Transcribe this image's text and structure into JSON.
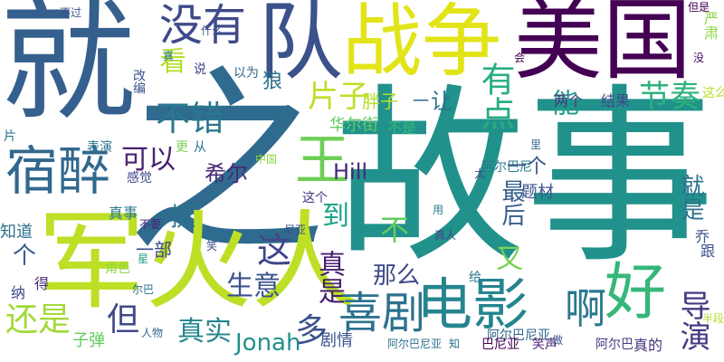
{
  "words": [
    {
      "text": "就",
      "color": "#355f8d",
      "vertical": false
    },
    {
      "text": "之",
      "color": "#2f6b8e",
      "vertical": false
    },
    {
      "text": "故事",
      "color": "#21918c",
      "vertical": false
    },
    {
      "text": "美国",
      "color": "#440154",
      "vertical": false
    },
    {
      "text": "战争",
      "color": "#e2e418",
      "vertical": false
    },
    {
      "text": "队",
      "color": "#3b528b",
      "vertical": true
    },
    {
      "text": "军火人",
      "color": "#bddf26",
      "vertical": false
    },
    {
      "text": "好",
      "color": "#35b779",
      "vertical": false
    },
    {
      "text": "电影",
      "color": "#25858e",
      "vertical": false
    },
    {
      "text": "啊",
      "color": "#2a788e",
      "vertical": false
    },
    {
      "text": "宿醉",
      "color": "#31688e",
      "vertical": false
    },
    {
      "text": "没有",
      "color": "#3e4a89",
      "vertical": false
    },
    {
      "text": "喜剧",
      "color": "#2c728e",
      "vertical": false
    },
    {
      "text": "王",
      "color": "#6ece58",
      "vertical": false
    },
    {
      "text": "片子",
      "color": "#bddf26",
      "vertical": false
    },
    {
      "text": "有点",
      "color": "#28ae80",
      "vertical": true
    },
    {
      "text": "节奏",
      "color": "#2db27d",
      "vertical": false
    },
    {
      "text": "不错",
      "color": "#2a788e",
      "vertical": false
    },
    {
      "text": "看",
      "color": "#b5de2b",
      "vertical": false
    },
    {
      "text": "还是",
      "color": "#a2da37",
      "vertical": false
    },
    {
      "text": "导演",
      "color": "#443983",
      "vertical": true
    },
    {
      "text": "真实",
      "color": "#25858e",
      "vertical": false
    },
    {
      "text": "这",
      "color": "#404688",
      "vertical": false
    },
    {
      "text": "但",
      "color": "#3e4a89",
      "vertical": false
    },
    {
      "text": "可以",
      "color": "#482071",
      "vertical": false
    },
    {
      "text": "Jonah",
      "color": "#21918c",
      "vertical": false
    },
    {
      "text": "到",
      "color": "#1fa188",
      "vertical": true
    },
    {
      "text": "挺",
      "color": "#2c728e",
      "vertical": false
    },
    {
      "text": "生意",
      "color": "#3b528b",
      "vertical": false
    },
    {
      "text": "多",
      "color": "#3b528b",
      "vertical": false
    },
    {
      "text": "希尔",
      "color": "#482878",
      "vertical": false
    },
    {
      "text": "Hill",
      "color": "#472a7a",
      "vertical": false
    },
    {
      "text": "又",
      "color": "#7ad151",
      "vertical": false
    },
    {
      "text": "不",
      "color": "#63cb5f",
      "vertical": false
    },
    {
      "text": "能",
      "color": "#1f9e89",
      "vertical": true
    },
    {
      "text": "让",
      "color": "#2e6e8e",
      "vertical": false
    },
    {
      "text": "真是",
      "color": "#481f70",
      "vertical": true
    },
    {
      "text": "个",
      "color": "#365c8d",
      "vertical": false
    },
    {
      "text": "那么",
      "color": "#3e4989",
      "vertical": false
    },
    {
      "text": "最后",
      "color": "#355f8d",
      "vertical": true
    },
    {
      "text": "就是",
      "color": "#2c728e",
      "vertical": true
    },
    {
      "text": "一个",
      "color": "#3b528b",
      "vertical": false
    },
    {
      "text": "狼",
      "color": "#2c728e",
      "vertical": false
    },
    {
      "text": "胖子",
      "color": "#b5de2b",
      "vertical": false
    },
    {
      "text": "华尔街",
      "color": "#63cb5f",
      "vertical": false
    },
    {
      "text": "不是",
      "color": "#35b779",
      "vertical": false
    },
    {
      "text": "一",
      "color": "#31688e",
      "vertical": false
    },
    {
      "text": "两个",
      "color": "#453581",
      "vertical": false
    },
    {
      "text": "结果",
      "color": "#3e4989",
      "vertical": false
    },
    {
      "text": "一部",
      "color": "#3e4989",
      "vertical": false
    },
    {
      "text": "剧情",
      "color": "#3b528b",
      "vertical": false
    },
    {
      "text": "题材",
      "color": "#3b528b",
      "vertical": false
    },
    {
      "text": "这个",
      "color": "#46337e",
      "vertical": false
    },
    {
      "text": "真事",
      "color": "#2a788e",
      "vertical": false
    },
    {
      "text": "知道",
      "color": "#2c728e",
      "vertical": false
    },
    {
      "text": "纳",
      "color": "#3e4989",
      "vertical": false
    },
    {
      "text": "得",
      "color": "#482878",
      "vertical": false
    },
    {
      "text": "子弹",
      "color": "#63cb5f",
      "vertical": false
    },
    {
      "text": "阿尔巴",
      "color": "#433e85",
      "vertical": false
    },
    {
      "text": "真的",
      "color": "#46337e",
      "vertical": false
    },
    {
      "text": "阿尔巴尼亚",
      "color": "#31688e",
      "vertical": false
    },
    {
      "text": "巴尼亚",
      "color": "#440154",
      "vertical": false
    },
    {
      "text": "笑声",
      "color": "#481f70",
      "vertical": false
    },
    {
      "text": "阿尔巴尼",
      "color": "#2a788e",
      "vertical": false
    },
    {
      "text": "什么",
      "color": "#3b528b",
      "vertical": false
    },
    {
      "text": "说",
      "color": "#414487",
      "vertical": false
    },
    {
      "text": "以为",
      "color": "#31688e",
      "vertical": false
    },
    {
      "text": "不过",
      "color": "#3b528b",
      "vertical": false
    },
    {
      "text": "但是",
      "color": "#440154",
      "vertical": false
    },
    {
      "text": "会",
      "color": "#440154",
      "vertical": false
    },
    {
      "text": "严肃",
      "color": "#8fd744",
      "vertical": true
    },
    {
      "text": "没",
      "color": "#46085c",
      "vertical": false
    },
    {
      "text": "这么",
      "color": "#b5de2b",
      "vertical": false
    },
    {
      "text": "改编",
      "color": "#3b528b",
      "vertical": true
    },
    {
      "text": "真",
      "color": "#2c728e",
      "vertical": false
    },
    {
      "text": "片",
      "color": "#2c728e",
      "vertical": false
    },
    {
      "text": "表演",
      "color": "#2c728e",
      "vertical": false
    },
    {
      "text": "更",
      "color": "#7ad151",
      "vertical": false
    },
    {
      "text": "从",
      "color": "#2c728e",
      "vertical": false
    },
    {
      "text": "中国",
      "color": "#8fd744",
      "vertical": false
    },
    {
      "text": "感觉",
      "color": "#3e4989",
      "vertical": false
    },
    {
      "text": "里",
      "color": "#31688e",
      "vertical": false
    },
    {
      "text": "太",
      "color": "#3e4989",
      "vertical": false
    },
    {
      "text": "用",
      "color": "#2a788e",
      "vertical": false
    },
    {
      "text": "不要",
      "color": "#482071",
      "vertical": false
    },
    {
      "text": "笑",
      "color": "#3b528b",
      "vertical": false
    },
    {
      "text": "尼亚",
      "color": "#3b528b",
      "vertical": false
    },
    {
      "text": "真人",
      "color": "#3e4989",
      "vertical": false
    },
    {
      "text": "乔",
      "color": "#3b528b",
      "vertical": false
    },
    {
      "text": "跟",
      "color": "#3b528b",
      "vertical": false
    },
    {
      "text": "角色",
      "color": "#8fd744",
      "vertical": false
    },
    {
      "text": "星",
      "color": "#1fa188",
      "vertical": false
    },
    {
      "text": "尔巴",
      "color": "#2c728e",
      "vertical": false
    },
    {
      "text": "人物",
      "color": "#31688e",
      "vertical": false
    },
    {
      "text": "给",
      "color": "#2c728e",
      "vertical": false
    },
    {
      "text": "半段",
      "color": "#b5de2b",
      "vertical": false
    },
    {
      "text": "知",
      "color": "#2c728e",
      "vertical": false
    },
    {
      "text": "做",
      "color": "#3b528b",
      "vertical": false
    },
    {
      "text": "阿尔巴尼亚",
      "color": "#2c728e",
      "vertical": false
    }
  ]
}
